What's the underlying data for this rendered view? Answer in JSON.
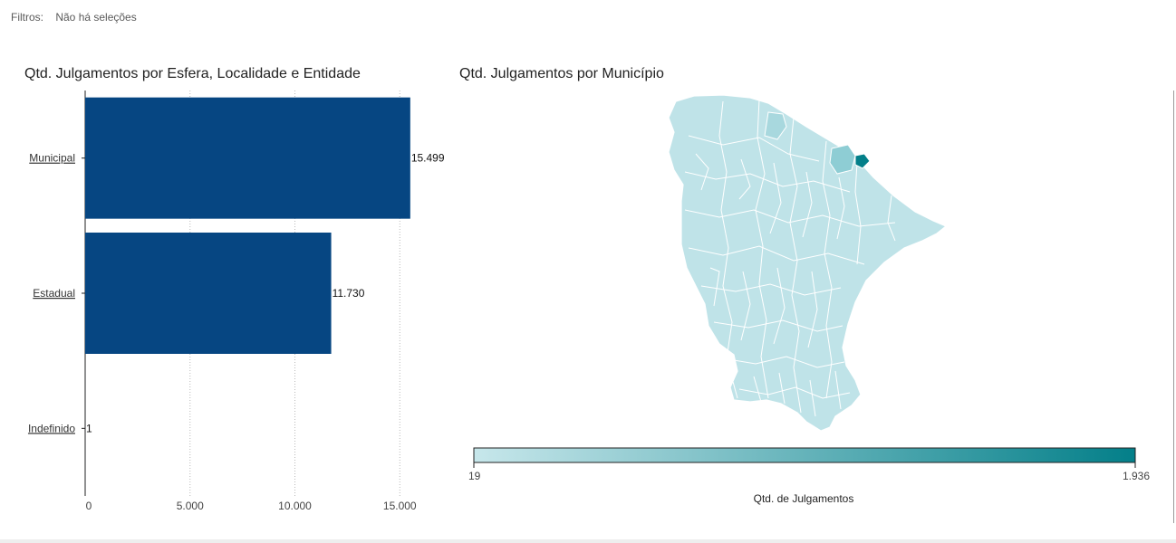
{
  "filters": {
    "label": "Filtros:",
    "value": "Não há seleções"
  },
  "colors": {
    "bar": "#064682",
    "map_low": "#bfe3e8",
    "map_mid": "#8ecdd4",
    "map_high": "#037f89",
    "map_border": "#ffffff"
  },
  "chart_data": [
    {
      "type": "bar",
      "orientation": "horizontal",
      "title": "Qtd. Julgamentos por Esfera, Localidade e Entidade",
      "categories": [
        "Municipal",
        "Estadual",
        "Indefinido"
      ],
      "values": [
        15499,
        11730,
        1
      ],
      "value_labels": [
        "15.499",
        "11.730",
        "1"
      ],
      "xlim": [
        0,
        16500
      ],
      "x_ticks": [
        0,
        5000,
        10000,
        15000
      ],
      "x_tick_labels": [
        "0",
        "5.000",
        "10.000",
        "15.000"
      ],
      "grid": true,
      "xlabel": "",
      "ylabel": ""
    },
    {
      "type": "choropleth",
      "title": "Qtd. Julgamentos por Município",
      "legend_title": "Qtd. de Julgamentos",
      "legend_min_label": "19",
      "legend_max_label": "1.936",
      "legend_min": 19,
      "legend_max": 1936
    }
  ]
}
